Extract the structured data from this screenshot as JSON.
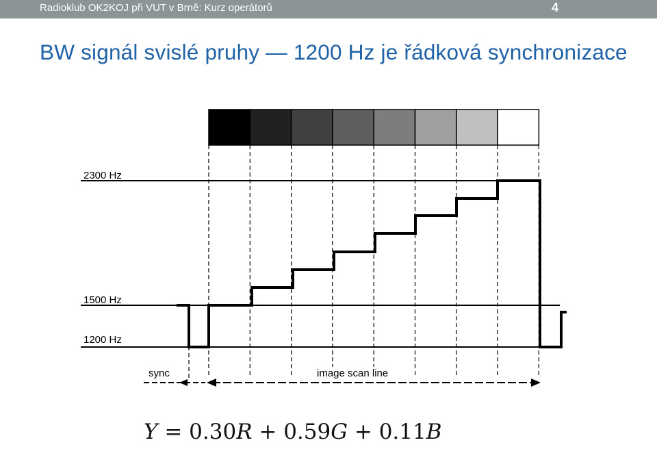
{
  "header": {
    "title": "Radioklub OK2KOJ při VUT v Brně: Kurz operátorů",
    "page_number": "4"
  },
  "slide": {
    "title": "BW signál svislé pruhy — 1200 Hz je řádková synchronizace"
  },
  "diagram": {
    "gray_levels": [
      "#000000",
      "#212121",
      "#404040",
      "#5e5e5e",
      "#7d7d7d",
      "#a0a0a0",
      "#c0c0c0",
      "#ffffff"
    ],
    "freq_labels": {
      "high": "2300 Hz",
      "mid": "1500 Hz",
      "low": "1200 Hz"
    },
    "sync_label": "sync",
    "scanline_label": "image scan line"
  },
  "formula": {
    "Y": "Y",
    "eq": " = 0.30",
    "R": "R",
    "plus1": " + 0.59",
    "G": "G",
    "plus2": " + 0.11",
    "B": "B"
  }
}
